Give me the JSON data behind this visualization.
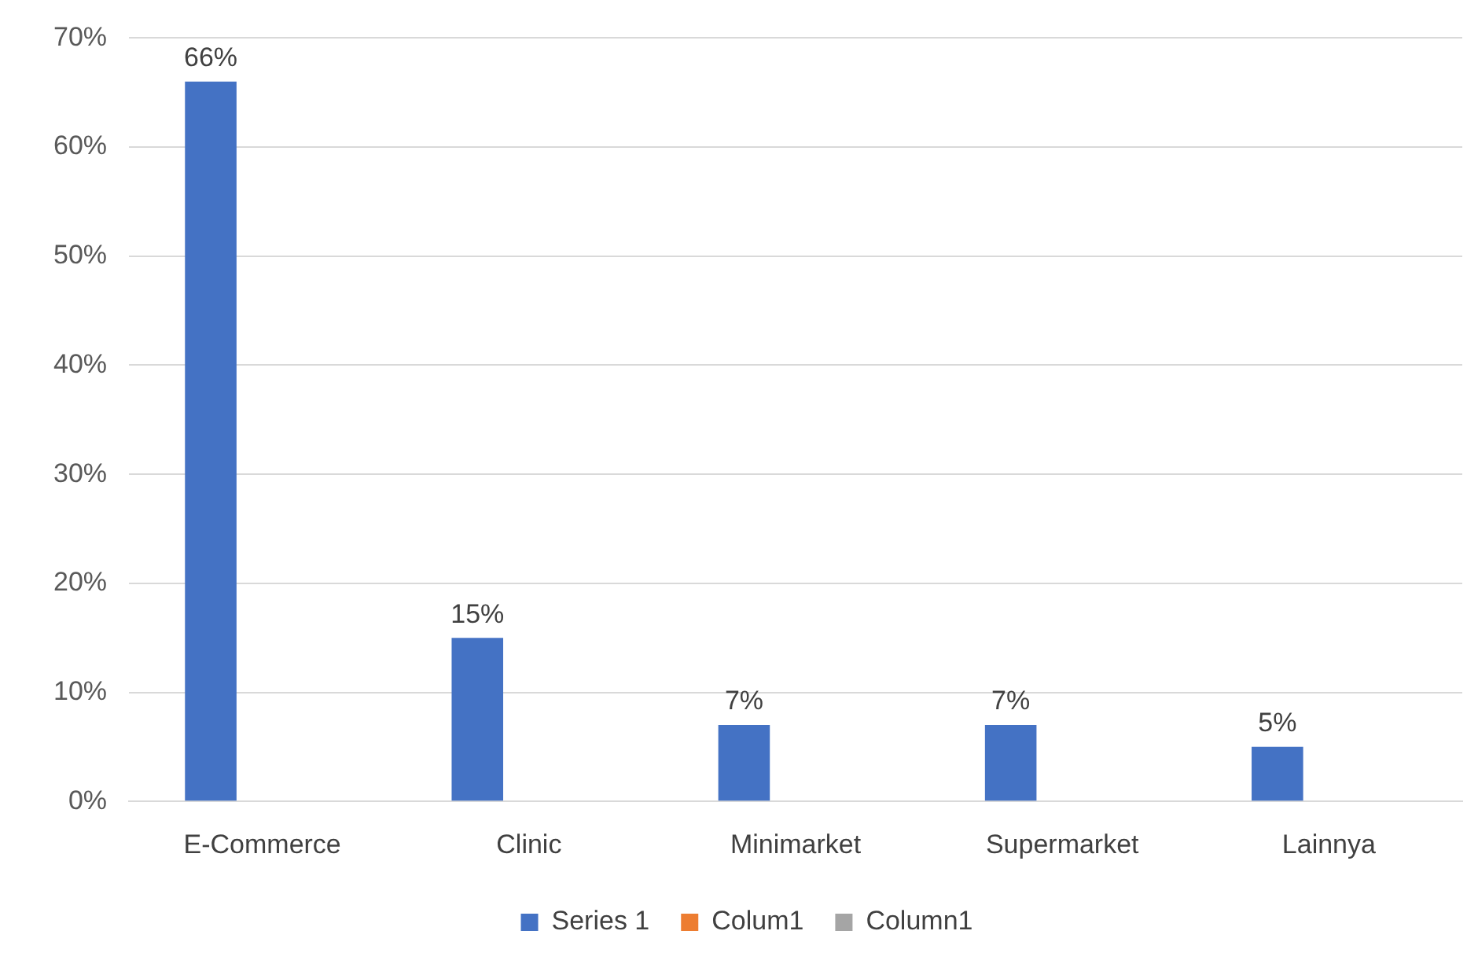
{
  "chart_data": {
    "type": "bar",
    "categories": [
      "E-Commerce",
      "Clinic",
      "Minimarket",
      "Supermarket",
      "Lainnya"
    ],
    "series": [
      {
        "name": "Series 1",
        "color": "#4472c4",
        "values": [
          66,
          15,
          7,
          7,
          5
        ],
        "value_labels": [
          "66%",
          "15%",
          "7%",
          "7%",
          "5%"
        ]
      },
      {
        "name": "Colum1",
        "color": "#ed7d31",
        "values": [
          null,
          null,
          null,
          null,
          null
        ]
      },
      {
        "name": "Column1",
        "color": "#a5a5a5",
        "values": [
          null,
          null,
          null,
          null,
          null
        ]
      }
    ],
    "ylim": [
      0,
      70
    ],
    "yticks": [
      {
        "value": 0,
        "label": "0%"
      },
      {
        "value": 10,
        "label": "10%"
      },
      {
        "value": 20,
        "label": "20%"
      },
      {
        "value": 30,
        "label": "30%"
      },
      {
        "value": 40,
        "label": "40%"
      },
      {
        "value": 50,
        "label": "50%"
      },
      {
        "value": 60,
        "label": "60%"
      },
      {
        "value": 70,
        "label": "70%"
      }
    ],
    "grid": "y",
    "legend": "bottom"
  }
}
